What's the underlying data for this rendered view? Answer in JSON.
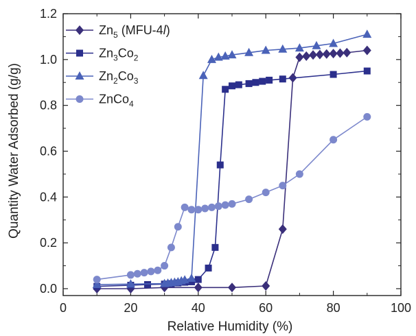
{
  "chart_data": {
    "type": "line",
    "xlabel": "Relative Humidity (%)",
    "ylabel": "Quantity Water Adsorbed (g/g)",
    "xlim": [
      0,
      100
    ],
    "ylim": [
      -0.03,
      1.2
    ],
    "xticks": [
      "0",
      "20",
      "40",
      "60",
      "80",
      "100"
    ],
    "yticks": [
      "0.0",
      "0.2",
      "0.4",
      "0.6",
      "0.8",
      "1.0",
      "1.2"
    ],
    "grid": false,
    "legend_position": "top-left",
    "series": [
      {
        "name": "Zn5 (MFU-4l)",
        "legend": {
          "base": "Zn",
          "sub1": "5",
          "rest": " (MFU-4",
          "ital": "l",
          "close": ")"
        },
        "color": "#3a2f7a",
        "marker": "diamond",
        "x": [
          10,
          20,
          30,
          40,
          50,
          60,
          65,
          68,
          70,
          72,
          74,
          76,
          78,
          80,
          82,
          84,
          90
        ],
        "y": [
          0.0,
          0.0,
          0.005,
          0.005,
          0.005,
          0.012,
          0.26,
          0.92,
          1.01,
          1.015,
          1.02,
          1.022,
          1.024,
          1.026,
          1.028,
          1.03,
          1.04
        ]
      },
      {
        "name": "Zn3Co2",
        "legend": {
          "base": "Zn",
          "sub1": "3",
          "mid": "Co",
          "sub2": "2"
        },
        "color": "#2b2f8c",
        "marker": "square",
        "x": [
          10,
          20,
          25,
          30,
          32,
          34,
          36,
          38,
          40,
          43,
          45,
          46.5,
          48,
          50,
          52,
          55,
          57,
          59,
          61,
          65,
          80,
          90
        ],
        "y": [
          0.01,
          0.015,
          0.018,
          0.02,
          0.022,
          0.025,
          0.028,
          0.03,
          0.04,
          0.09,
          0.18,
          0.54,
          0.87,
          0.885,
          0.89,
          0.895,
          0.9,
          0.905,
          0.91,
          0.915,
          0.935,
          0.95
        ]
      },
      {
        "name": "Zn2Co3",
        "legend": {
          "base": "Zn",
          "sub1": "2",
          "mid": "Co",
          "sub2": "3"
        },
        "color": "#4a62b8",
        "marker": "triangle",
        "x": [
          10,
          20,
          30,
          31,
          32,
          33,
          34,
          35,
          36,
          38,
          41.5,
          44,
          46,
          48,
          50,
          55,
          60,
          65,
          70,
          75,
          80,
          90
        ],
        "y": [
          0.018,
          0.02,
          0.022,
          0.024,
          0.026,
          0.028,
          0.03,
          0.034,
          0.038,
          0.045,
          0.93,
          1.0,
          1.01,
          1.015,
          1.02,
          1.03,
          1.04,
          1.045,
          1.05,
          1.06,
          1.07,
          1.11
        ]
      },
      {
        "name": "ZnCo4",
        "legend": {
          "base": "Zn",
          "mid": "Co",
          "sub2": "4"
        },
        "color": "#7c88cc",
        "marker": "circle",
        "x": [
          10,
          20,
          22,
          24,
          26,
          28,
          30,
          32,
          34,
          36,
          38,
          40,
          42,
          44,
          46,
          48,
          50,
          55,
          60,
          65,
          70,
          80,
          90
        ],
        "y": [
          0.04,
          0.06,
          0.065,
          0.07,
          0.075,
          0.08,
          0.1,
          0.18,
          0.27,
          0.355,
          0.345,
          0.345,
          0.35,
          0.355,
          0.36,
          0.365,
          0.37,
          0.39,
          0.42,
          0.45,
          0.5,
          0.65,
          0.75
        ]
      }
    ]
  }
}
